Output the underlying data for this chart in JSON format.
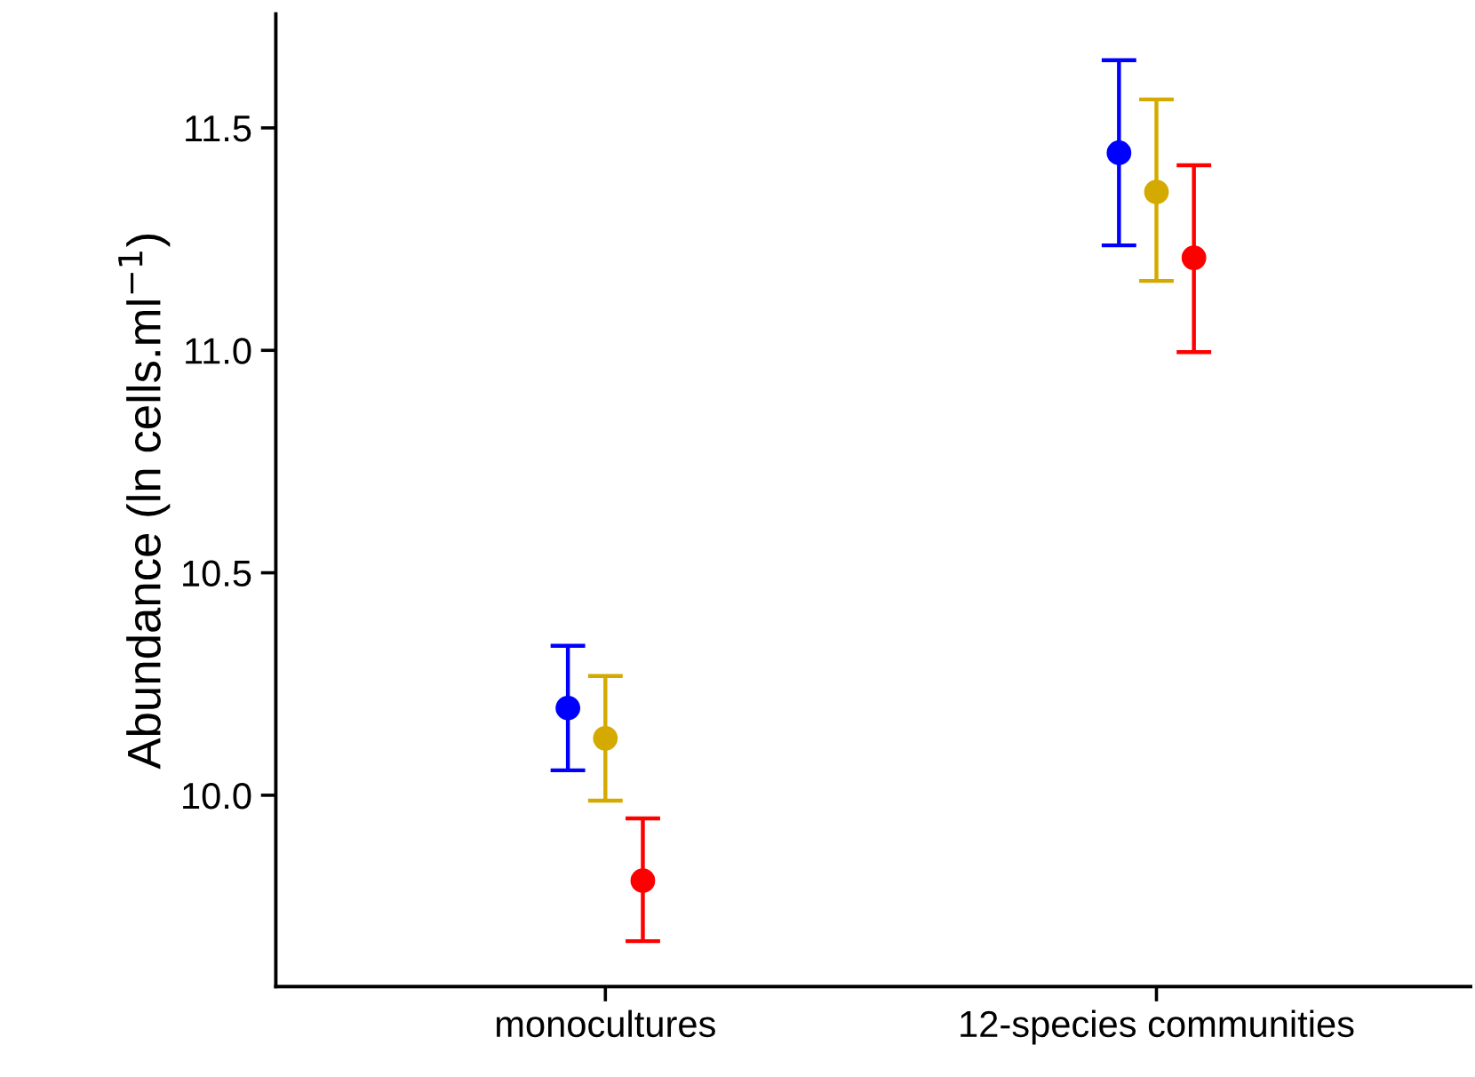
{
  "chart_data": {
    "type": "scatter",
    "ylabel": "Abundance (ln cells.ml$^{−1}$)",
    "categories": [
      "monocultures",
      "12-species communities"
    ],
    "ylim": [
      9.57,
      11.756
    ],
    "yticks": [
      {
        "value": 10.0,
        "label": "10.0"
      },
      {
        "value": 10.5,
        "label": "10.5"
      },
      {
        "value": 11.0,
        "label": "11.0"
      },
      {
        "value": 11.5,
        "label": "11.5"
      }
    ],
    "grid": false,
    "marker": "circle",
    "series": [
      {
        "color": "#0000ff",
        "values": [
          10.196,
          11.444
        ],
        "errors": [
          [
            10.056,
            10.336
          ],
          [
            11.236,
            11.652
          ]
        ]
      },
      {
        "color": "#d4aa00",
        "values": [
          10.128,
          11.356
        ],
        "errors": [
          [
            9.988,
            10.268
          ],
          [
            11.156,
            11.564
          ]
        ]
      },
      {
        "color": "#ff0000",
        "values": [
          9.808,
          11.208
        ],
        "errors": [
          [
            9.672,
            9.948
          ],
          [
            10.996,
            11.416
          ]
        ]
      }
    ]
  }
}
